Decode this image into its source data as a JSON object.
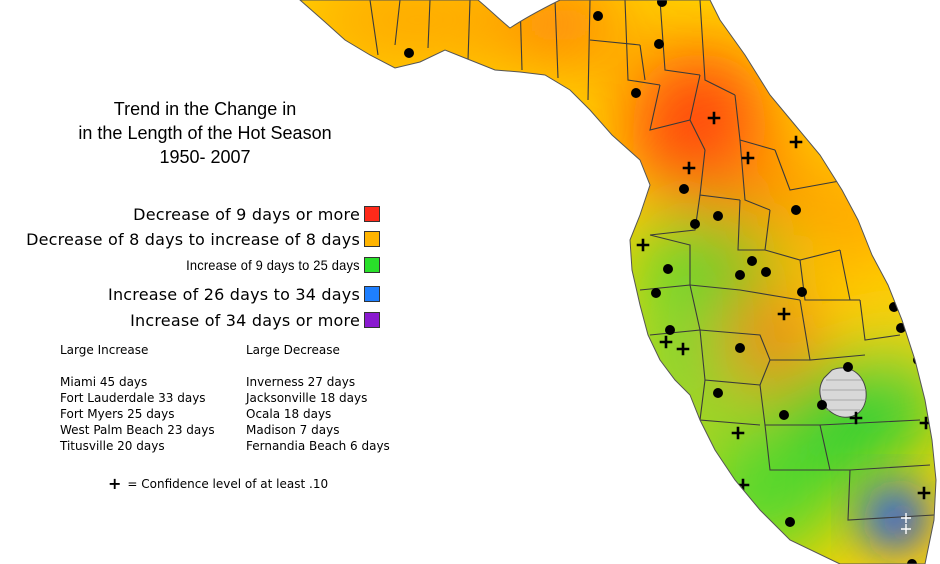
{
  "title": {
    "line1": "Trend in the Change in",
    "line2": "in the Length of the Hot Season",
    "line3": "1950- 2007"
  },
  "legend": [
    {
      "label": "Decrease of 9 days or more",
      "color": "#ff2a1a"
    },
    {
      "label": "Decrease of 8 days to increase of 8 days",
      "color": "#ffb400"
    },
    {
      "label": "Increase of 9 days to 25 days",
      "color": "#29e02a"
    },
    {
      "label": "Increase of 26 days to 34 days",
      "color": "#1e7fff"
    },
    {
      "label": "Increase of 34 days or more",
      "color": "#8a1ad0"
    }
  ],
  "large_increase": {
    "heading": "Large Increase",
    "items": [
      "Miami 45 days",
      "Fort Lauderdale 33 days",
      "Fort Myers 25 days",
      "West Palm Beach 23 days",
      "Titusville 20 days"
    ]
  },
  "large_decrease": {
    "heading": "Large Decrease",
    "items": [
      "Inverness 27 days",
      "Jacksonville 18 days",
      "Ocala 18 days",
      "Madison 7 days",
      "Fernandia Beach 6 days"
    ]
  },
  "note": {
    "symbol": "+",
    "text": "= Confidence level of at least .10"
  }
}
